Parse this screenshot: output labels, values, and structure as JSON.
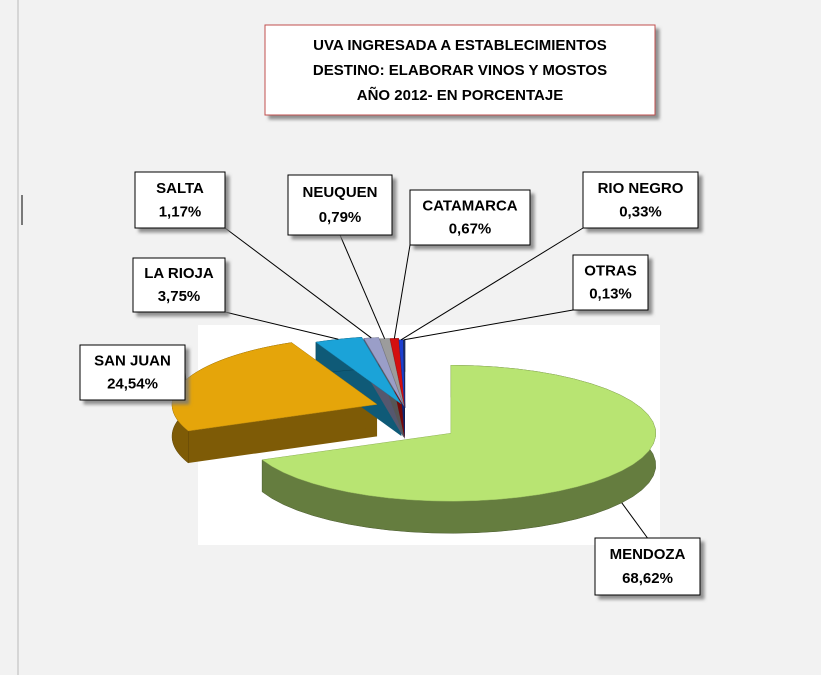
{
  "chart_data": {
    "type": "pie",
    "title": [
      "UVA INGRESADA A ESTABLECIMIENTOS",
      "DESTINO: ELABORAR VINOS Y MOSTOS",
      "AÑO 2012- EN PORCENTAJE"
    ],
    "categories": [
      "MENDOZA",
      "SAN JUAN",
      "LA RIOJA",
      "SALTA",
      "NEUQUEN",
      "CATAMARCA",
      "RIO NEGRO",
      "OTRAS"
    ],
    "values": [
      68.62,
      24.54,
      3.75,
      1.17,
      0.79,
      0.67,
      0.33,
      0.13
    ],
    "value_labels": [
      "68,62%",
      "24,54%",
      "3,75%",
      "1,17%",
      "0,79%",
      "0,67%",
      "0,33%",
      "0,13%"
    ],
    "colors": [
      "#b8e472",
      "#e5a50a",
      "#1ba3d8",
      "#9a9ec8",
      "#9c9c9c",
      "#d40f0f",
      "#1c3fd0",
      "#1d2f66"
    ]
  }
}
